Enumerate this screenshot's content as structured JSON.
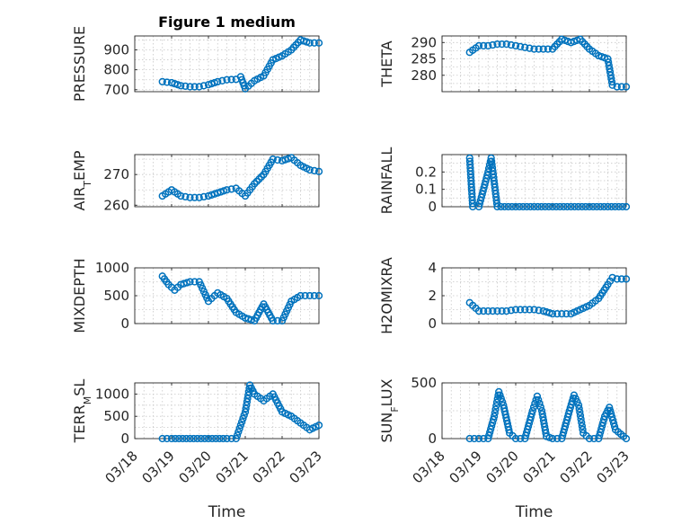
{
  "colors": {
    "marker": "#0072BD",
    "axis": "#262626",
    "grid": "#c8c8c8",
    "background": "#ffffff"
  },
  "chart_data": [
    {
      "type": "scatter",
      "id": "pressure",
      "title": "Figure 1 medium",
      "ylabel": "PRESSURE",
      "xlim": [
        "03/18",
        "03/23"
      ],
      "ylim": [
        690,
        970
      ],
      "yticks": [
        700,
        800,
        900
      ],
      "xticks": [
        "03/18",
        "03/19",
        "03/20",
        "03/21",
        "03/22",
        "03/23"
      ],
      "x": [
        "03/18 18:00",
        "03/19 00:00",
        "03/19 06:00",
        "03/19 12:00",
        "03/19 18:00",
        "03/20 00:00",
        "03/20 06:00",
        "03/20 12:00",
        "03/20 18:00",
        "03/20 21:00",
        "03/21 00:00",
        "03/21 06:00",
        "03/21 12:00",
        "03/21 18:00",
        "03/22 00:00",
        "03/22 06:00",
        "03/22 12:00",
        "03/22 18:00",
        "03/23 00:00"
      ],
      "y": [
        740,
        735,
        720,
        715,
        715,
        725,
        740,
        750,
        752,
        765,
        705,
        745,
        770,
        850,
        870,
        900,
        950,
        935,
        935
      ]
    },
    {
      "type": "scatter",
      "id": "theta",
      "ylabel": "THETA",
      "xlim": [
        "03/18",
        "03/23"
      ],
      "ylim": [
        275,
        292
      ],
      "yticks": [
        280,
        285,
        290
      ],
      "xticks": [
        "03/18",
        "03/19",
        "03/20",
        "03/21",
        "03/22",
        "03/23"
      ],
      "x": [
        "03/18 18:00",
        "03/19 00:00",
        "03/19 06:00",
        "03/19 12:00",
        "03/19 18:00",
        "03/20 00:00",
        "03/20 06:00",
        "03/20 12:00",
        "03/20 18:00",
        "03/21 00:00",
        "03/21 06:00",
        "03/21 12:00",
        "03/21 18:00",
        "03/22 00:00",
        "03/22 06:00",
        "03/22 12:00",
        "03/22 15:00",
        "03/22 18:00",
        "03/23 00:00"
      ],
      "y": [
        287,
        289,
        289,
        289.5,
        289.5,
        289,
        288.5,
        288,
        288,
        288,
        291,
        290,
        291,
        288,
        286,
        285,
        277,
        276.5,
        276.5
      ]
    },
    {
      "type": "scatter",
      "id": "air_temp",
      "ylabel": "AIR_TEMP",
      "xlim": [
        "03/18",
        "03/23"
      ],
      "ylim": [
        259.5,
        276.5
      ],
      "yticks": [
        260,
        270
      ],
      "xticks": [
        "03/18",
        "03/19",
        "03/20",
        "03/21",
        "03/22",
        "03/23"
      ],
      "x": [
        "03/18 18:00",
        "03/19 00:00",
        "03/19 06:00",
        "03/19 12:00",
        "03/19 18:00",
        "03/20 00:00",
        "03/20 06:00",
        "03/20 12:00",
        "03/20 18:00",
        "03/21 00:00",
        "03/21 06:00",
        "03/21 12:00",
        "03/21 18:00",
        "03/22 00:00",
        "03/22 06:00",
        "03/22 12:00",
        "03/22 18:00",
        "03/23 00:00"
      ],
      "y": [
        263,
        265,
        263,
        262.5,
        262.5,
        263,
        264,
        265,
        265.5,
        263,
        267,
        270,
        275,
        274.5,
        275.5,
        273,
        271.5,
        271
      ]
    },
    {
      "type": "scatter",
      "id": "rainfall",
      "ylabel": "RAINFALL",
      "xlim": [
        "03/18",
        "03/23"
      ],
      "ylim": [
        0,
        0.3
      ],
      "yticks": [
        0,
        0.1,
        0.2
      ],
      "xticks": [
        "03/18",
        "03/19",
        "03/20",
        "03/21",
        "03/22",
        "03/23"
      ],
      "x": [
        "03/18 18:00",
        "03/18 20:00",
        "03/19 00:00",
        "03/19 06:00",
        "03/19 08:00",
        "03/19 12:00",
        "03/20 00:00",
        "03/20 12:00",
        "03/21 00:00",
        "03/21 12:00",
        "03/22 00:00",
        "03/22 12:00",
        "03/23 00:00"
      ],
      "y": [
        0.28,
        0,
        0,
        0.2,
        0.28,
        0,
        0,
        0,
        0,
        0,
        0,
        0,
        0
      ]
    },
    {
      "type": "scatter",
      "id": "mixdepth",
      "ylabel": "MIXDEPTH",
      "xlim": [
        "03/18",
        "03/23"
      ],
      "ylim": [
        0,
        1000
      ],
      "yticks": [
        0,
        500,
        1000
      ],
      "xticks": [
        "03/18",
        "03/19",
        "03/20",
        "03/21",
        "03/22",
        "03/23"
      ],
      "x": [
        "03/18 18:00",
        "03/18 22:00",
        "03/19 02:00",
        "03/19 06:00",
        "03/19 12:00",
        "03/19 18:00",
        "03/20 00:00",
        "03/20 06:00",
        "03/20 12:00",
        "03/20 18:00",
        "03/21 00:00",
        "03/21 06:00",
        "03/21 12:00",
        "03/21 18:00",
        "03/22 00:00",
        "03/22 06:00",
        "03/22 12:00",
        "03/22 18:00",
        "03/23 00:00"
      ],
      "y": [
        850,
        700,
        600,
        700,
        750,
        750,
        400,
        550,
        450,
        200,
        100,
        50,
        350,
        50,
        50,
        400,
        500,
        500,
        500
      ]
    },
    {
      "type": "scatter",
      "id": "h2omixra",
      "ylabel": "H2OMIXRA",
      "xlim": [
        "03/18",
        "03/23"
      ],
      "ylim": [
        0,
        4
      ],
      "yticks": [
        0,
        2,
        4
      ],
      "xticks": [
        "03/18",
        "03/19",
        "03/20",
        "03/21",
        "03/22",
        "03/23"
      ],
      "x": [
        "03/18 18:00",
        "03/19 00:00",
        "03/19 06:00",
        "03/19 12:00",
        "03/19 18:00",
        "03/20 00:00",
        "03/20 06:00",
        "03/20 12:00",
        "03/20 18:00",
        "03/21 00:00",
        "03/21 06:00",
        "03/21 12:00",
        "03/21 18:00",
        "03/22 00:00",
        "03/22 06:00",
        "03/22 12:00",
        "03/22 15:00",
        "03/22 18:00",
        "03/23 00:00"
      ],
      "y": [
        1.5,
        0.9,
        0.9,
        0.9,
        0.9,
        1,
        1,
        1,
        0.9,
        0.7,
        0.7,
        0.7,
        1,
        1.3,
        1.8,
        2.8,
        3.3,
        3.2,
        3.2
      ]
    },
    {
      "type": "scatter",
      "id": "terr_msl",
      "ylabel": "TERR_MSL",
      "xlabel": "Time",
      "xlim": [
        "03/18",
        "03/23"
      ],
      "ylim": [
        0,
        1250
      ],
      "yticks": [
        0,
        500,
        1000
      ],
      "xticks": [
        "03/18",
        "03/19",
        "03/20",
        "03/21",
        "03/22",
        "03/23"
      ],
      "x": [
        "03/18 18:00",
        "03/19 00:00",
        "03/19 12:00",
        "03/20 00:00",
        "03/20 12:00",
        "03/20 18:00",
        "03/21 00:00",
        "03/21 03:00",
        "03/21 06:00",
        "03/21 12:00",
        "03/21 18:00",
        "03/22 00:00",
        "03/22 06:00",
        "03/22 12:00",
        "03/22 18:00",
        "03/23 00:00"
      ],
      "y": [
        0,
        0,
        0,
        0,
        0,
        0,
        600,
        1200,
        1000,
        850,
        1000,
        600,
        500,
        350,
        200,
        300
      ]
    },
    {
      "type": "scatter",
      "id": "sun_flux",
      "ylabel": "SUN_FLUX",
      "xlabel": "Time",
      "xlim": [
        "03/18",
        "03/23"
      ],
      "ylim": [
        0,
        500
      ],
      "yticks": [
        0,
        500
      ],
      "xticks": [
        "03/18",
        "03/19",
        "03/20",
        "03/21",
        "03/22",
        "03/23"
      ],
      "x": [
        "03/18 18:00",
        "03/19 00:00",
        "03/19 06:00",
        "03/19 10:00",
        "03/19 13:00",
        "03/19 16:00",
        "03/19 20:00",
        "03/20 00:00",
        "03/20 06:00",
        "03/20 11:00",
        "03/20 14:00",
        "03/20 17:00",
        "03/20 20:00",
        "03/21 00:00",
        "03/21 06:00",
        "03/21 11:00",
        "03/21 14:00",
        "03/21 17:00",
        "03/21 20:00",
        "03/22 00:00",
        "03/22 06:00",
        "03/22 10:00",
        "03/22 13:00",
        "03/22 17:00",
        "03/23 00:00"
      ],
      "y": [
        0,
        0,
        0,
        200,
        420,
        300,
        50,
        0,
        0,
        250,
        380,
        250,
        20,
        0,
        0,
        250,
        390,
        300,
        50,
        0,
        0,
        200,
        280,
        80,
        0
      ]
    }
  ]
}
